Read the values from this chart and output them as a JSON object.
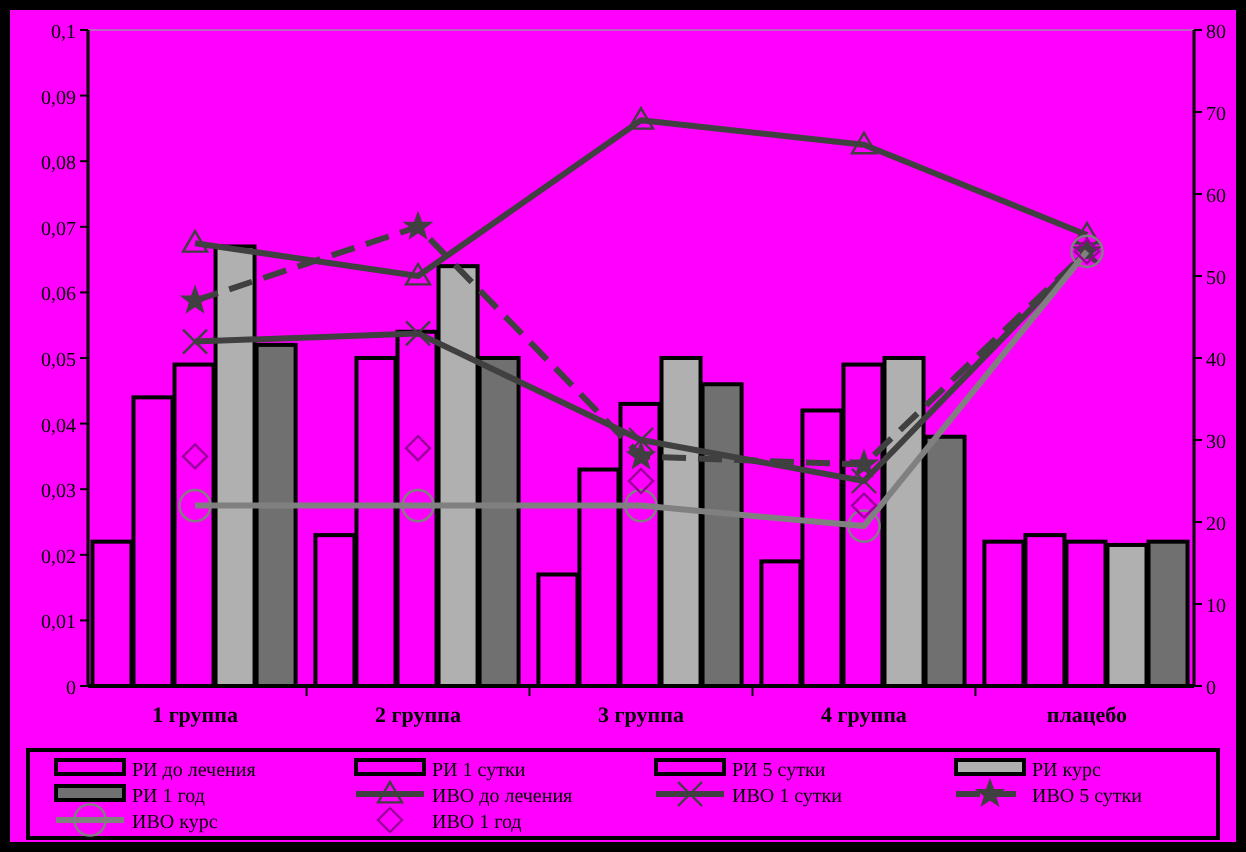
{
  "chart_data": {
    "type": "bar",
    "categories": [
      "1 группа",
      "2 группа",
      "3 группа",
      "4 группа",
      "плацебо"
    ],
    "series": [
      {
        "name": "РИ до лечения",
        "color": "#ff00ff",
        "values": [
          0.022,
          0.023,
          0.017,
          0.019,
          0.022
        ]
      },
      {
        "name": "РИ 1 сутки",
        "color": "#ff00ff",
        "values": [
          0.044,
          0.05,
          0.033,
          0.042,
          0.023
        ]
      },
      {
        "name": "РИ 5 сутки",
        "color": "#ff00ff",
        "values": [
          0.049,
          0.054,
          0.043,
          0.049,
          0.022
        ]
      },
      {
        "name": "РИ курс",
        "color": "#b0b0b0",
        "values": [
          0.067,
          0.064,
          0.05,
          0.05,
          0.0215
        ]
      },
      {
        "name": "РИ 1 год",
        "color": "#707070",
        "values": [
          0.052,
          0.05,
          0.046,
          0.038,
          0.022
        ]
      },
      {
        "name": "ИВО до лечения",
        "type": "line",
        "axis": "y2",
        "color": "#404040",
        "marker": "triangle",
        "line_style": "solid",
        "values": [
          54,
          50,
          69,
          66,
          55
        ]
      },
      {
        "name": "ИВО 1 сутки",
        "type": "line",
        "axis": "y2",
        "color": "#404040",
        "marker": "cross",
        "line_style": "solid",
        "values": [
          42,
          43,
          30,
          25,
          53
        ]
      },
      {
        "name": "ИВО 5 сутки",
        "type": "line",
        "axis": "y2",
        "color": "#404040",
        "marker": "star",
        "line_style": "dashed",
        "values": [
          47,
          56,
          28,
          27,
          53
        ]
      },
      {
        "name": "ИВО курс",
        "type": "line",
        "axis": "y2",
        "color": "#808080",
        "marker": "circle",
        "line_style": "solid",
        "values": [
          22,
          22,
          22,
          19.5,
          53
        ]
      },
      {
        "name": "ИВО 1 год",
        "type": "scatter",
        "axis": "y2",
        "color": "#9a009a",
        "marker": "diamond",
        "values": [
          28,
          29,
          25,
          22,
          53
        ]
      }
    ],
    "ylim": [
      0,
      0.1
    ],
    "yticks": [
      0,
      {
        "value": 0.01,
        "label": "0,01"
      },
      {
        "value": 0.02,
        "label": "0,02"
      },
      {
        "value": 0.03,
        "label": "0,03"
      },
      {
        "value": 0.04,
        "label": "0,04"
      },
      {
        "value": 0.05,
        "label": "0,05"
      },
      {
        "value": 0.06,
        "label": "0,06"
      },
      {
        "value": 0.07,
        "label": "0,07"
      },
      {
        "value": 0.08,
        "label": "0,08"
      },
      {
        "value": 0.09,
        "label": "0,09"
      },
      {
        "value": 0.1,
        "label": "0,1"
      }
    ],
    "y2lim": [
      0,
      80
    ],
    "y2ticks": [
      0,
      10,
      20,
      30,
      40,
      50,
      60,
      70,
      80
    ],
    "grid": false,
    "legend": "bottom"
  }
}
